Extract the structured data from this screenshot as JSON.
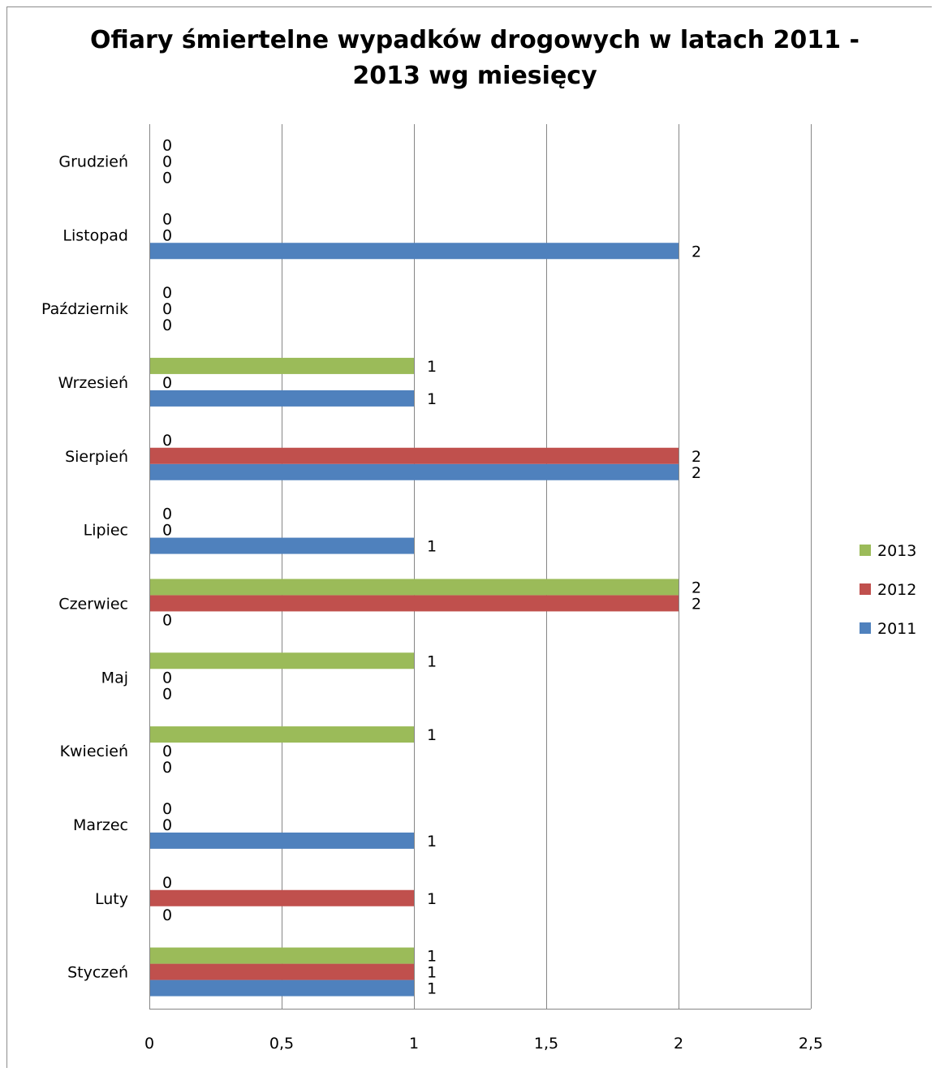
{
  "chart_data": {
    "type": "bar",
    "orientation": "horizontal",
    "title": "Ofiary śmiertelne wypadków drogowych w latach 2011 - 2013 wg miesięcy",
    "title_lines": [
      "Ofiary śmiertelne wypadków drogowych w latach 2011 -",
      "2013 wg miesięcy"
    ],
    "categories": [
      "Styczeń",
      "Luty",
      "Marzec",
      "Kwiecień",
      "Maj",
      "Czerwiec",
      "Lipiec",
      "Sierpień",
      "Wrzesień",
      "Październik",
      "Listopad",
      "Grudzień"
    ],
    "series": [
      {
        "name": "2011",
        "color": "#4f81bd",
        "values": [
          1,
          0,
          1,
          0,
          0,
          0,
          1,
          2,
          1,
          0,
          2,
          0
        ]
      },
      {
        "name": "2012",
        "color": "#c0504d",
        "values": [
          1,
          1,
          0,
          0,
          0,
          2,
          0,
          2,
          0,
          0,
          0,
          0
        ]
      },
      {
        "name": "2013",
        "color": "#9bbb59",
        "values": [
          1,
          0,
          0,
          1,
          1,
          2,
          0,
          0,
          1,
          0,
          0,
          0
        ]
      }
    ],
    "xlim": [
      0,
      2.5
    ],
    "x_ticks": [
      0,
      0.5,
      1,
      1.5,
      2,
      2.5
    ],
    "x_tick_labels": [
      "0",
      "0,5",
      "1",
      "1,5",
      "2",
      "2,5"
    ],
    "grid": "vertical",
    "legend_position": "right",
    "legend_order": [
      "2013",
      "2012",
      "2011"
    ],
    "data_labels": true
  }
}
